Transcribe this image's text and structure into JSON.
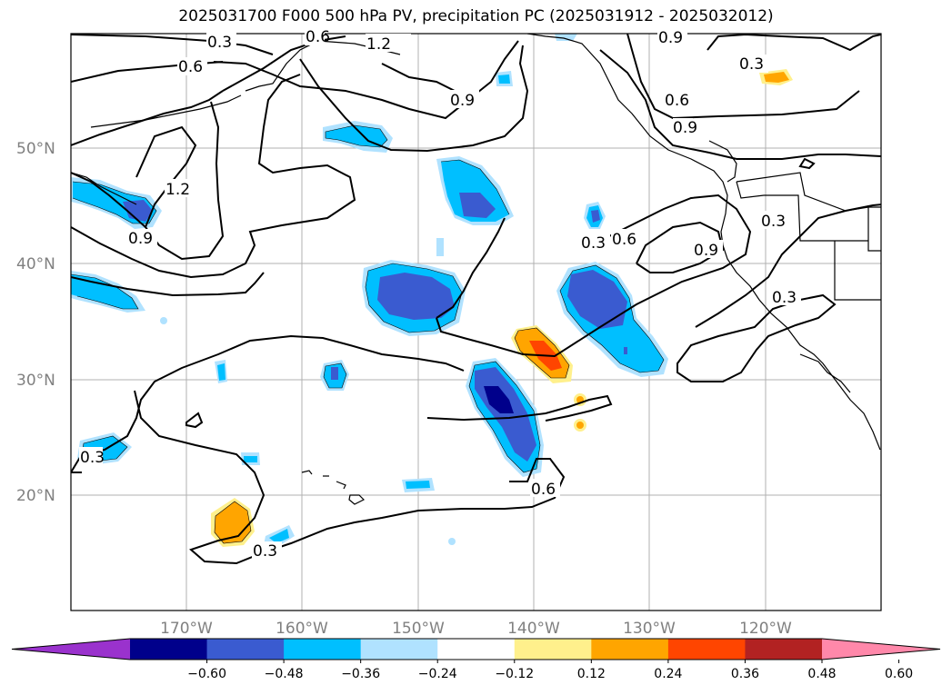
{
  "title": "2025031700 F000 500 hPa PV, precipitation PC (2025031912 - 2025032012)",
  "latitude_labels": [
    "50°N",
    "40°N",
    "30°N",
    "20°N"
  ],
  "longitude_labels": [
    "170°W",
    "160°W",
    "150°W",
    "140°W",
    "130°W",
    "120°W"
  ],
  "contour_labels": [
    "0.3",
    "0.6",
    "0.9",
    "1.2",
    "0.3",
    "0.6",
    "0.9",
    "0.9",
    "0.6",
    "0.3",
    "0.6",
    "0.9",
    "0.3",
    "0.3",
    "0.3",
    "0.6",
    "0.3",
    "1.2",
    "0.9"
  ],
  "colorbar": {
    "tick_labels": [
      "−0.60",
      "−0.48",
      "−0.36",
      "−0.24",
      "−0.12",
      "0.12",
      "0.24",
      "0.36",
      "0.48",
      "0.60"
    ],
    "colors": [
      "#9a32cd",
      "#00008b",
      "#3a5bd0",
      "#00bfff",
      "#b0e2ff",
      "#ffffff",
      "#fff08c",
      "#ffa500",
      "#ff4500",
      "#b22222",
      "#ff88aa"
    ]
  },
  "colors": {
    "negative_dark": "#00008b",
    "negative_mid": "#3a5bd0",
    "negative": "#00bfff",
    "negative_light": "#b0e2ff",
    "positive_light": "#fff08c",
    "positive": "#ffa500",
    "positive_strong": "#ff4500"
  }
}
